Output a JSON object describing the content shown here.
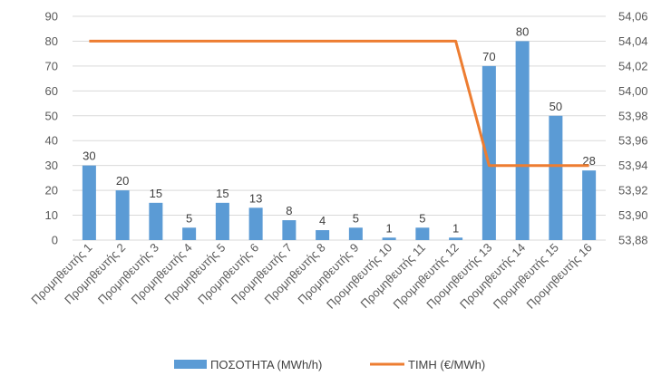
{
  "chart_data": {
    "type": "bar",
    "title": "",
    "xlabel": "",
    "categories": [
      "Προμηθευτής 1",
      "Προμηθευτής 2",
      "Προμηθευτής 3",
      "Προμηθευτής 4",
      "Προμηθευτής 5",
      "Προμηθευτής 6",
      "Προμηθευτής 7",
      "Προμηθευτής 8",
      "Προμηθευτής 9",
      "Προμηθευτής 10",
      "Προμηθευτής 11",
      "Προμηθευτής 12",
      "Προμηθευτής 13",
      "Προμηθευτής 14",
      "Προμηθευτής 15",
      "Προμηθευτής 16"
    ],
    "series": [
      {
        "name": "ΠΟΣΟΤΗΤΑ (MWh/h)",
        "type": "bar",
        "axis": "left",
        "color": "#5b9bd5",
        "values": [
          30,
          20,
          15,
          5,
          15,
          13,
          8,
          4,
          5,
          1,
          5,
          1,
          70,
          80,
          50,
          28
        ]
      },
      {
        "name": "ΤΙΜΗ (€/MWh)",
        "type": "line",
        "axis": "right",
        "color": "#ed7d31",
        "values": [
          54.04,
          54.04,
          54.04,
          54.04,
          54.04,
          54.04,
          54.04,
          54.04,
          54.04,
          54.04,
          54.04,
          54.04,
          53.94,
          53.94,
          53.94,
          53.94
        ]
      }
    ],
    "y_left": {
      "ylim": [
        0,
        90
      ],
      "ticks": [
        "0",
        "10",
        "20",
        "30",
        "40",
        "50",
        "60",
        "70",
        "80",
        "90"
      ]
    },
    "y_right": {
      "ylim": [
        53.88,
        54.06
      ],
      "ticks": [
        "53,88",
        "53,90",
        "53,92",
        "53,94",
        "53,96",
        "53,98",
        "54,00",
        "54,02",
        "54,04",
        "54,06"
      ]
    },
    "grid": true,
    "legend": "bottom",
    "colors": {
      "grid": "#d9d9d9",
      "text": "#595959"
    }
  }
}
